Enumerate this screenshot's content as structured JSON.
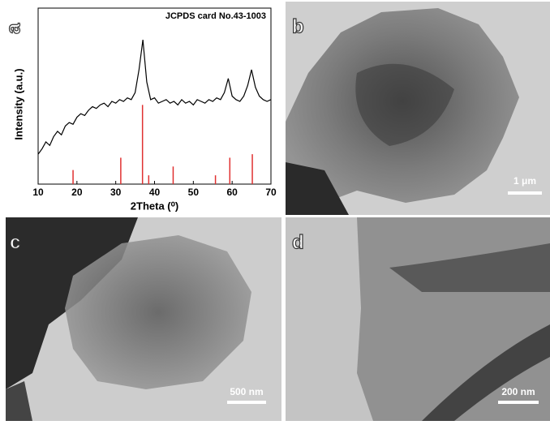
{
  "chart_data": {
    "type": "line",
    "annotation": "JCPDS card No.43-1003",
    "xlabel": "2Theta (⁰)",
    "ylabel": "Intensity (a.u.)",
    "x": [
      10,
      11,
      12,
      13,
      14,
      15,
      16,
      17,
      18,
      19,
      20,
      21,
      22,
      23,
      24,
      25,
      26,
      27,
      28,
      29,
      30,
      31,
      32,
      33,
      34,
      35,
      36,
      37,
      38,
      39,
      40,
      41,
      42,
      43,
      44,
      45,
      46,
      47,
      48,
      49,
      50,
      51,
      52,
      53,
      54,
      55,
      56,
      57,
      58,
      59,
      60,
      61,
      62,
      63,
      64,
      65,
      66,
      67,
      68,
      69,
      70
    ],
    "series": [
      {
        "color": "#000000",
        "values": [
          17,
          20,
          24,
          22,
          27,
          30,
          28,
          33,
          35,
          34,
          38,
          40,
          39,
          42,
          44,
          43,
          45,
          46,
          44,
          47,
          46,
          48,
          47,
          49,
          48,
          52,
          65,
          82,
          58,
          48,
          49,
          46,
          47,
          48,
          46,
          47,
          45,
          48,
          46,
          47,
          45,
          48,
          47,
          46,
          48,
          47,
          49,
          48,
          52,
          60,
          50,
          48,
          47,
          50,
          56,
          65,
          55,
          50,
          48,
          47,
          48
        ]
      }
    ],
    "reference": {
      "color": "#e03030",
      "x": [
        19,
        31.3,
        36.9,
        38.5,
        44.8,
        55.7,
        59.4,
        65.2
      ],
      "values": [
        8,
        15,
        45,
        5,
        10,
        5,
        15,
        17
      ]
    },
    "xlim": [
      10,
      70
    ],
    "ylim": [
      0,
      100
    ],
    "xticks": [
      10,
      20,
      30,
      40,
      50,
      60,
      70
    ]
  },
  "panels": [
    {
      "label": "a"
    },
    {
      "label": "b",
      "scale_bar": "1 μm"
    },
    {
      "label": "c",
      "scale_bar": "500 nm"
    },
    {
      "label": "d",
      "scale_bar": "200 nm"
    }
  ]
}
